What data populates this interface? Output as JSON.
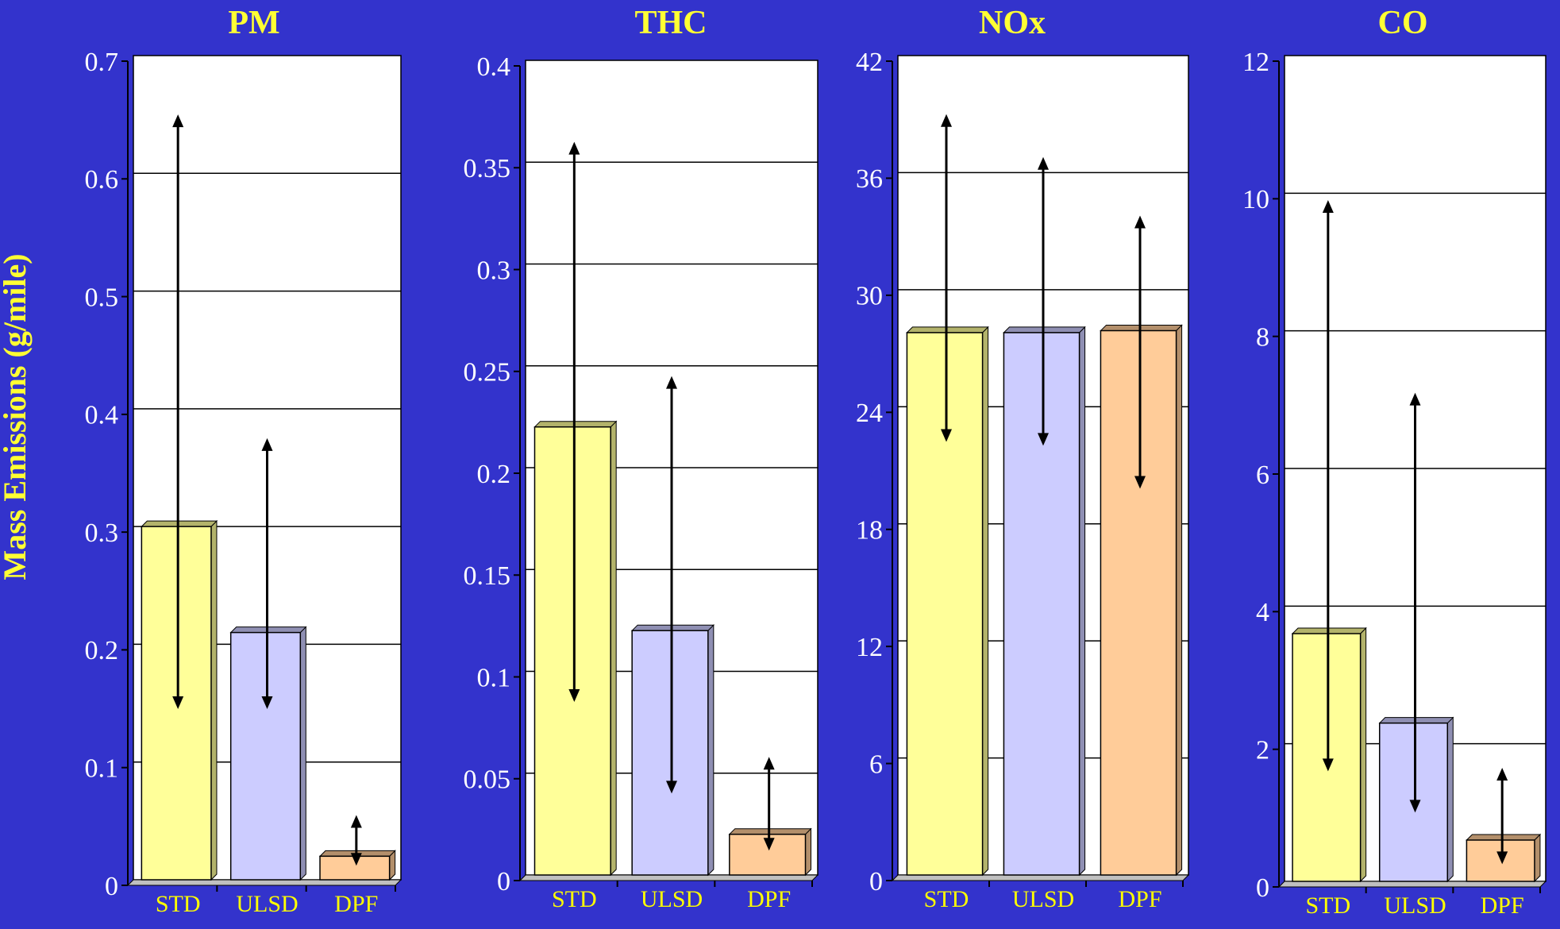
{
  "ylabel": "Mass Emissions (g/mile)",
  "colors": {
    "background": "#3333cc",
    "title": "#ffff33",
    "ylabel": "#ffff33",
    "category_label": "#ffff00",
    "tick_label": "#ffffff",
    "plot_bg": "#ffffff",
    "gridline": "#000000",
    "bars": [
      "#ffff99",
      "#ccccff",
      "#ffcc99"
    ],
    "bar_sides": [
      "#b3b36b",
      "#8f8fb3",
      "#b38f6b"
    ]
  },
  "chart_data": [
    {
      "type": "bar",
      "title": "PM",
      "categories": [
        "STD",
        "ULSD",
        "DPF"
      ],
      "values": [
        0.3,
        0.21,
        0.02
      ],
      "error_low": [
        0.145,
        0.145,
        0.012
      ],
      "error_high": [
        0.65,
        0.375,
        0.055
      ],
      "ylim": [
        0,
        0.7
      ],
      "yticks": [
        0,
        0.1,
        0.2,
        0.3,
        0.4,
        0.5,
        0.6,
        0.7
      ],
      "ytick_labels": [
        "0",
        "0.1",
        "0.2",
        "0.3",
        "0.4",
        "0.5",
        "0.6",
        "0.7"
      ],
      "grid": true
    },
    {
      "type": "bar",
      "title": "THC",
      "categories": [
        "STD",
        "ULSD",
        "DPF"
      ],
      "values": [
        0.22,
        0.12,
        0.02
      ],
      "error_low": [
        0.085,
        0.04,
        0.012
      ],
      "error_high": [
        0.36,
        0.245,
        0.058
      ],
      "ylim": [
        0,
        0.4
      ],
      "yticks": [
        0,
        0.05,
        0.1,
        0.15,
        0.2,
        0.25,
        0.3,
        0.35,
        0.4
      ],
      "ytick_labels": [
        "0",
        "0.05",
        "0.1",
        "0.15",
        "0.2",
        "0.25",
        "0.3",
        "0.35",
        "0.4"
      ],
      "grid": true
    },
    {
      "type": "bar",
      "title": "NOx",
      "categories": [
        "STD",
        "ULSD",
        "DPF"
      ],
      "values": [
        27.8,
        27.8,
        27.9
      ],
      "error_low": [
        22.2,
        22.0,
        19.8
      ],
      "error_high": [
        39.0,
        36.8,
        33.8
      ],
      "ylim": [
        0,
        42
      ],
      "yticks": [
        0,
        6,
        12,
        18,
        24,
        30,
        36,
        42
      ],
      "ytick_labels": [
        "0",
        "6",
        "12",
        "18",
        "24",
        "30",
        "36",
        "42"
      ],
      "grid": true
    },
    {
      "type": "bar",
      "title": "CO",
      "categories": [
        "STD",
        "ULSD",
        "DPF"
      ],
      "values": [
        3.6,
        2.3,
        0.6
      ],
      "error_low": [
        1.6,
        1.0,
        0.25
      ],
      "error_high": [
        9.9,
        7.1,
        1.65
      ],
      "ylim": [
        0,
        12
      ],
      "yticks": [
        0,
        2,
        4,
        6,
        8,
        10,
        12
      ],
      "ytick_labels": [
        "0",
        "2",
        "4",
        "6",
        "8",
        "10",
        "12"
      ],
      "grid": true
    }
  ]
}
